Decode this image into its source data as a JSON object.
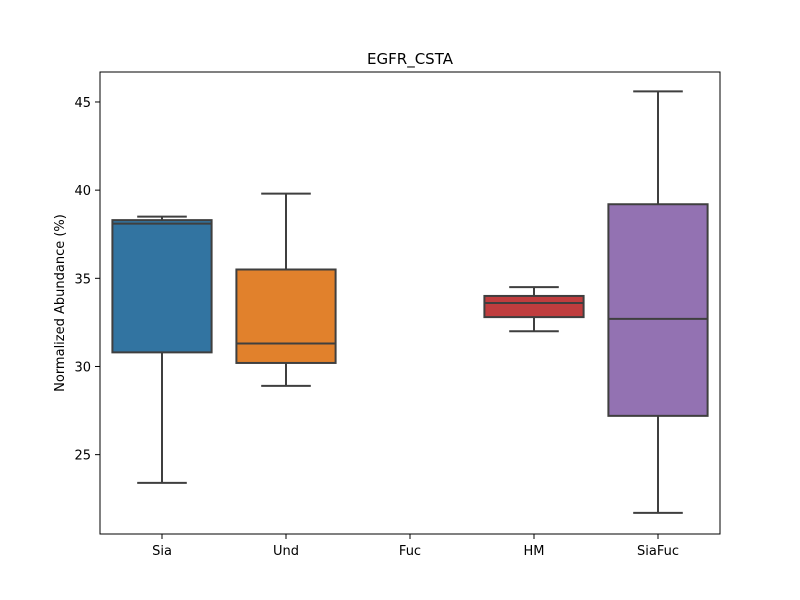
{
  "chart_data": {
    "type": "box",
    "title": "EGFR_CSTA",
    "xlabel": "",
    "ylabel": "Normalized Abundance (%)",
    "categories": [
      "Sia",
      "Und",
      "Fuc",
      "HM",
      "SiaFuc"
    ],
    "ylim": [
      20.5,
      46.7
    ],
    "yticks": [
      25,
      30,
      35,
      40,
      45
    ],
    "ytick_labels": [
      "25",
      "30",
      "35",
      "40",
      "45"
    ],
    "grid": false,
    "legend": "none",
    "boxes": [
      {
        "category": "Sia",
        "whisker_low": 23.4,
        "q1": 30.8,
        "median": 38.1,
        "q3": 38.3,
        "whisker_high": 38.5,
        "color": "#3274a1"
      },
      {
        "category": "Und",
        "whisker_low": 28.9,
        "q1": 30.2,
        "median": 31.3,
        "q3": 35.5,
        "whisker_high": 39.8,
        "color": "#e1812c"
      },
      {
        "category": "Fuc",
        "whisker_low": null,
        "q1": null,
        "median": null,
        "q3": null,
        "whisker_high": null,
        "color": "#3a923a"
      },
      {
        "category": "HM",
        "whisker_low": 32.0,
        "q1": 32.8,
        "median": 33.6,
        "q3": 34.0,
        "whisker_high": 34.5,
        "color": "#c03d3e"
      },
      {
        "category": "SiaFuc",
        "whisker_low": 21.7,
        "q1": 27.2,
        "median": 32.7,
        "q3": 39.2,
        "whisker_high": 45.6,
        "color": "#9372b2"
      }
    ],
    "line_color": "#3f3f3f"
  }
}
